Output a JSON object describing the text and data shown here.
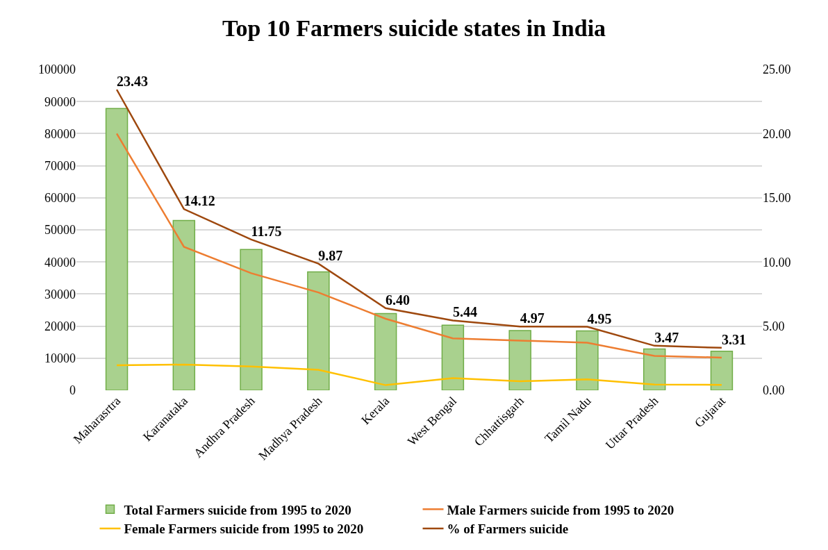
{
  "chart_data": {
    "type": "bar",
    "title": "Top 10 Farmers suicide states in India",
    "categories": [
      "Maharasrtra",
      "Karanataka",
      "Andhra Pradesh",
      "Madhya Pradesh",
      "Kerala",
      "West Bengal",
      "Chhattisgarh",
      "Tamil Nadu",
      "Uttar Pradesh",
      "Gujarat"
    ],
    "series": [
      {
        "name": "Total Farmers suicide from 1995 to 2020",
        "color": "#a9d18e",
        "values": [
          87800,
          52900,
          43900,
          36900,
          23900,
          20300,
          18600,
          18500,
          12900,
          12200
        ]
      },
      {
        "name": "Male Farmers suicide from 1995 to 2020",
        "type": "line",
        "color": "#ed7d31",
        "values": [
          80000,
          44700,
          36500,
          30500,
          22300,
          16200,
          15500,
          14800,
          10700,
          10200
        ]
      },
      {
        "name": "Female Farmers suicide from 1995 to 2020",
        "type": "line",
        "color": "#ffc000",
        "values": [
          7800,
          8000,
          7400,
          6400,
          1600,
          3800,
          2800,
          3400,
          1800,
          1700
        ]
      },
      {
        "name": "% of Farmers suicide",
        "type": "line",
        "color": "#9e480e",
        "axis": "y2",
        "values": [
          23.43,
          14.12,
          11.75,
          9.87,
          6.4,
          5.44,
          4.97,
          4.95,
          3.47,
          3.31
        ],
        "value_labels": [
          "23.43",
          "14.12",
          "11.75",
          "9.87",
          "6.40",
          "5.44",
          "4.97",
          "4.95",
          "3.47",
          "3.31"
        ]
      }
    ],
    "ylim": [
      0,
      100000
    ],
    "yticks": [
      0,
      10000,
      20000,
      30000,
      40000,
      50000,
      60000,
      70000,
      80000,
      90000,
      100000
    ],
    "y2lim": [
      0,
      25
    ],
    "y2ticks": [
      {
        "value": 0,
        "label": "0.00"
      },
      {
        "value": 5,
        "label": "5.00"
      },
      {
        "value": 10,
        "label": "10.00"
      },
      {
        "value": 15,
        "label": "15.00"
      },
      {
        "value": 20,
        "label": "20.00"
      },
      {
        "value": 25,
        "label": "25.00"
      }
    ],
    "grid": "y",
    "legend": "bottom",
    "marker": "none",
    "line_style": "solid"
  }
}
